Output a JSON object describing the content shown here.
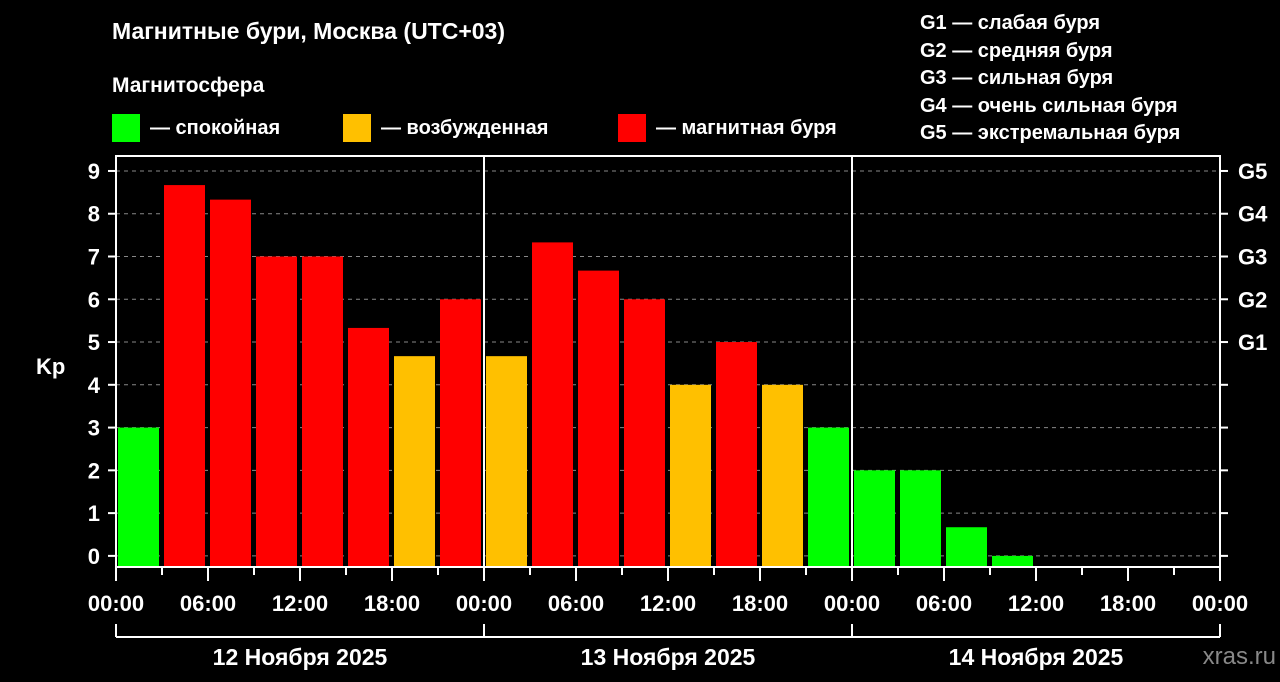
{
  "title": "Магнитные бури, Москва (UTC+03)",
  "legend": {
    "title": "Магнитосфера",
    "items": [
      {
        "label": "— спокойная",
        "color": "#00ff00"
      },
      {
        "label": "— возбужденная",
        "color": "#ffc000"
      },
      {
        "label": "— магнитная буря",
        "color": "#ff0000"
      }
    ]
  },
  "g_scale": [
    "G1 — слабая буря",
    "G2 — средняя буря",
    "G3 — сильная буря",
    "G4 — очень сильная буря",
    "G5 — экстремальная буря"
  ],
  "watermark": "xras.ru",
  "chart_data": {
    "type": "bar",
    "ylabel": "Kp",
    "ylim": [
      -0.26,
      9.35
    ],
    "yticks": [
      0,
      1,
      2,
      3,
      4,
      5,
      6,
      7,
      8,
      9
    ],
    "right_axis_labels": [
      {
        "value": 5,
        "label": "G1"
      },
      {
        "value": 6,
        "label": "G2"
      },
      {
        "value": 7,
        "label": "G3"
      },
      {
        "value": 8,
        "label": "G4"
      },
      {
        "value": 9,
        "label": "G5"
      }
    ],
    "grid": "dashed horizontal",
    "xtick_labels": [
      "00:00",
      "06:00",
      "12:00",
      "18:00",
      "00:00",
      "06:00",
      "12:00",
      "18:00",
      "00:00",
      "06:00",
      "12:00",
      "18:00",
      "00:00"
    ],
    "days": [
      "12 Ноября 2025",
      "13 Ноября 2025",
      "14 Ноября 2025"
    ],
    "interval_hours": 3,
    "values": [
      3,
      8.67,
      8.33,
      7,
      7,
      5.33,
      4.67,
      6,
      4.67,
      7.33,
      6.67,
      6,
      4,
      5,
      4,
      3,
      2,
      2,
      0.67,
      0
    ],
    "colors": {
      "quiet": "#00ff00",
      "active": "#ffc000",
      "storm": "#ff0000"
    }
  }
}
